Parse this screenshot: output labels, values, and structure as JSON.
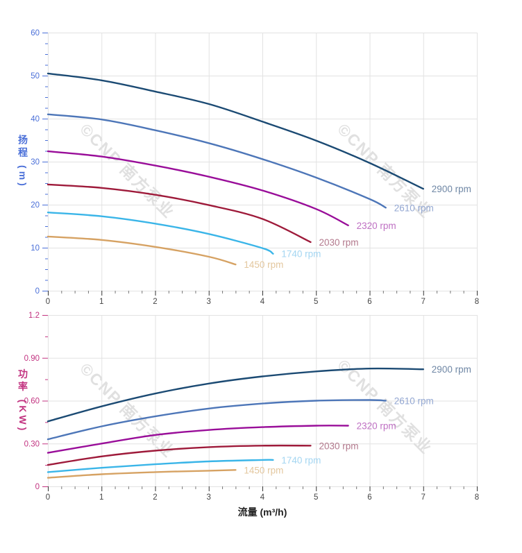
{
  "watermark": {
    "text": "©CNP 南方泵业"
  },
  "chart_data": [
    {
      "type": "line",
      "name": "head-vs-flow",
      "title": "",
      "xlabel": "",
      "ylabel": "扬程 (m)",
      "xlim": [
        0,
        8
      ],
      "ylim": [
        0,
        60
      ],
      "x_ticks": [
        0,
        1,
        2,
        3,
        4,
        5,
        6,
        7,
        8
      ],
      "x_tick_labels": [
        "0",
        "1",
        "2",
        "3",
        "4",
        "5",
        "6",
        "7",
        "8"
      ],
      "y_ticks": [
        0,
        10,
        20,
        30,
        40,
        50,
        60
      ],
      "y_tick_labels": [
        "0",
        "10",
        "20",
        "30",
        "40",
        "50",
        "60"
      ],
      "minor_x_step": 0.25,
      "minor_y_step": 2.5,
      "grid": true,
      "grid_color": "#e2e2e2",
      "axis_color": "#4a6fd8",
      "x_tick_color": "#444444",
      "legend_position": "end-of-curve",
      "series": [
        {
          "name": "2900 rpm",
          "color": "#1b4a73",
          "label_color": "#6f87a5",
          "points": [
            [
              0,
              50.5
            ],
            [
              1,
              48.9
            ],
            [
              2,
              46.3
            ],
            [
              3,
              43.4
            ],
            [
              4,
              39.3
            ],
            [
              5,
              34.9
            ],
            [
              6,
              29.7
            ],
            [
              7,
              23.7
            ]
          ]
        },
        {
          "name": "2610 rpm",
          "color": "#4d76b8",
          "label_color": "#93a7d2",
          "points": [
            [
              0,
              41.0
            ],
            [
              1,
              39.8
            ],
            [
              2,
              37.3
            ],
            [
              3,
              34.3
            ],
            [
              4,
              30.6
            ],
            [
              5,
              26.3
            ],
            [
              6,
              21.3
            ],
            [
              6.3,
              19.3
            ]
          ]
        },
        {
          "name": "2320 rpm",
          "color": "#990d99",
          "label_color": "#bf70c3",
          "points": [
            [
              0,
              32.4
            ],
            [
              1,
              31.2
            ],
            [
              2,
              29.1
            ],
            [
              3,
              26.5
            ],
            [
              4,
              23.3
            ],
            [
              5,
              19.0
            ],
            [
              5.6,
              15.2
            ]
          ]
        },
        {
          "name": "2030 rpm",
          "color": "#9e1a3a",
          "label_color": "#b2788c",
          "points": [
            [
              0,
              24.7
            ],
            [
              1,
              23.9
            ],
            [
              2,
              22.3
            ],
            [
              3,
              19.9
            ],
            [
              4,
              16.7
            ],
            [
              4.9,
              11.3
            ]
          ]
        },
        {
          "name": "1740 rpm",
          "color": "#3ab5e8",
          "label_color": "#a4d6f2",
          "points": [
            [
              0,
              18.2
            ],
            [
              1,
              17.3
            ],
            [
              2,
              15.6
            ],
            [
              3,
              13.2
            ],
            [
              4,
              9.9
            ],
            [
              4.2,
              8.6
            ]
          ]
        },
        {
          "name": "1450 rpm",
          "color": "#d6a263",
          "label_color": "#e3c79e",
          "points": [
            [
              0,
              12.6
            ],
            [
              1,
              11.8
            ],
            [
              2,
              10.2
            ],
            [
              3,
              7.9
            ],
            [
              3.5,
              6.1
            ]
          ]
        }
      ]
    },
    {
      "type": "line",
      "name": "power-vs-flow",
      "title": "",
      "xlabel": "流量 (m³/h)",
      "ylabel": "功率 (KW)",
      "xlim": [
        0,
        8
      ],
      "ylim": [
        0,
        1.2
      ],
      "x_ticks": [
        0,
        1,
        2,
        3,
        4,
        5,
        6,
        7,
        8
      ],
      "x_tick_labels": [
        "0",
        "1",
        "2",
        "3",
        "4",
        "5",
        "6",
        "7",
        "8"
      ],
      "y_ticks": [
        0,
        0.3,
        0.6,
        0.9,
        1.2
      ],
      "y_tick_labels": [
        "0",
        "0.30",
        "0.60",
        "0.90",
        "1.2"
      ],
      "minor_x_step": 0.25,
      "minor_y_step": 0.15,
      "grid": true,
      "grid_color": "#e2e2e2",
      "axis_color": "#c23380",
      "x_tick_color": "#444444",
      "legend_position": "end-of-curve",
      "series": [
        {
          "name": "2900 rpm",
          "color": "#1b4a73",
          "label_color": "#6f87a5",
          "points": [
            [
              0,
              0.455
            ],
            [
              1,
              0.56
            ],
            [
              2,
              0.65
            ],
            [
              3,
              0.72
            ],
            [
              4,
              0.77
            ],
            [
              5,
              0.805
            ],
            [
              6,
              0.825
            ],
            [
              7,
              0.82
            ]
          ]
        },
        {
          "name": "2610 rpm",
          "color": "#4d76b8",
          "label_color": "#93a7d2",
          "points": [
            [
              0,
              0.33
            ],
            [
              1,
              0.42
            ],
            [
              2,
              0.49
            ],
            [
              3,
              0.545
            ],
            [
              4,
              0.58
            ],
            [
              5,
              0.6
            ],
            [
              6,
              0.605
            ],
            [
              6.3,
              0.6
            ]
          ]
        },
        {
          "name": "2320 rpm",
          "color": "#990d99",
          "label_color": "#bf70c3",
          "points": [
            [
              0,
              0.235
            ],
            [
              1,
              0.3
            ],
            [
              2,
              0.36
            ],
            [
              3,
              0.395
            ],
            [
              4,
              0.415
            ],
            [
              5,
              0.425
            ],
            [
              5.6,
              0.425
            ]
          ]
        },
        {
          "name": "2030 rpm",
          "color": "#9e1a3a",
          "label_color": "#b2788c",
          "points": [
            [
              0,
              0.15
            ],
            [
              1,
              0.21
            ],
            [
              2,
              0.25
            ],
            [
              3,
              0.275
            ],
            [
              4,
              0.285
            ],
            [
              4.9,
              0.285
            ]
          ]
        },
        {
          "name": "1740 rpm",
          "color": "#3ab5e8",
          "label_color": "#a4d6f2",
          "points": [
            [
              0,
              0.1
            ],
            [
              1,
              0.13
            ],
            [
              2,
              0.155
            ],
            [
              3,
              0.175
            ],
            [
              4,
              0.185
            ],
            [
              4.2,
              0.185
            ]
          ]
        },
        {
          "name": "1450 rpm",
          "color": "#d6a263",
          "label_color": "#e3c79e",
          "points": [
            [
              0,
              0.06
            ],
            [
              1,
              0.085
            ],
            [
              2,
              0.1
            ],
            [
              3,
              0.11
            ],
            [
              3.5,
              0.115
            ]
          ]
        }
      ]
    }
  ]
}
